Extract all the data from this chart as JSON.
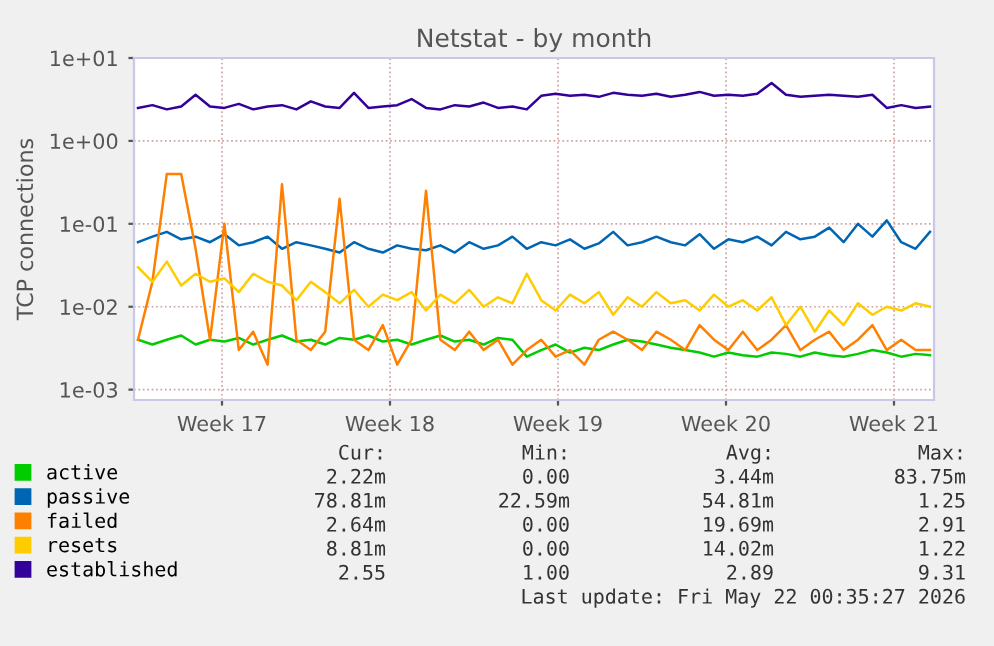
{
  "chart_data": {
    "type": "line",
    "title": "Netstat - by month",
    "ylabel": "TCP connections",
    "log": true,
    "grid": true,
    "legend": "bottom",
    "x": [
      "2026-04-20T00:00",
      "2026-04-20T14:24",
      "2026-04-21T04:48",
      "2026-04-21T19:12",
      "2026-04-22T09:36",
      "2026-04-23T00:00",
      "2026-04-23T14:24",
      "2026-04-24T04:48",
      "2026-04-24T19:12",
      "2026-04-25T09:36",
      "2026-04-26T00:00",
      "2026-04-26T14:24",
      "2026-04-27T04:48",
      "2026-04-27T19:12",
      "2026-04-28T09:36",
      "2026-04-29T00:00",
      "2026-04-29T14:24",
      "2026-04-30T04:48",
      "2026-04-30T19:12",
      "2026-05-01T09:36",
      "2026-05-02T00:00",
      "2026-05-02T14:24",
      "2026-05-03T04:48",
      "2026-05-03T19:12",
      "2026-05-04T09:36",
      "2026-05-05T00:00",
      "2026-05-05T14:24",
      "2026-05-06T04:48",
      "2026-05-06T19:12",
      "2026-05-07T09:36",
      "2026-05-08T00:00",
      "2026-05-08T14:24",
      "2026-05-09T04:48",
      "2026-05-09T19:12",
      "2026-05-10T09:36",
      "2026-05-11T00:00",
      "2026-05-11T14:24",
      "2026-05-12T04:48",
      "2026-05-12T19:12",
      "2026-05-13T09:36",
      "2026-05-14T00:00",
      "2026-05-14T14:24",
      "2026-05-15T04:48",
      "2026-05-15T19:12",
      "2026-05-16T09:36",
      "2026-05-17T00:00",
      "2026-05-17T14:24",
      "2026-05-18T04:48",
      "2026-05-18T19:12",
      "2026-05-19T09:36",
      "2026-05-20T00:00",
      "2026-05-20T14:24",
      "2026-05-21T04:48",
      "2026-05-21T19:12",
      "2026-05-22T09:36",
      "2026-05-23T00:00"
    ],
    "xlim": [
      "2026-04-19T20:00",
      "2026-05-23T04:00"
    ],
    "xticks": [
      {
        "value": "2026-04-23T12:00",
        "label": "Week 17"
      },
      {
        "value": "2026-04-30T12:00",
        "label": "Week 18"
      },
      {
        "value": "2026-05-07T12:00",
        "label": "Week 19"
      },
      {
        "value": "2026-05-14T12:00",
        "label": "Week 20"
      },
      {
        "value": "2026-05-21T12:00",
        "label": "Week 21"
      }
    ],
    "ylim": [
      0.00075,
      10
    ],
    "yticks": [
      {
        "value": 0.001,
        "label": "1e-03"
      },
      {
        "value": 0.01,
        "label": "1e-02"
      },
      {
        "value": 0.1,
        "label": "1e-01"
      },
      {
        "value": 1,
        "label": "1e+00"
      },
      {
        "value": 10,
        "label": "1e+01"
      }
    ],
    "series": [
      {
        "name": "active",
        "color": "#00cc00",
        "values": [
          0.004,
          0.0035,
          0.004,
          0.0045,
          0.0035,
          0.004,
          0.0038,
          0.0042,
          0.0035,
          0.004,
          0.0045,
          0.0038,
          0.004,
          0.0035,
          0.0042,
          0.004,
          0.0045,
          0.0038,
          0.004,
          0.0035,
          0.004,
          0.0045,
          0.0038,
          0.004,
          0.0035,
          0.0042,
          0.004,
          0.0025,
          0.003,
          0.0035,
          0.0028,
          0.0032,
          0.003,
          0.0035,
          0.004,
          0.0038,
          0.0035,
          0.0032,
          0.003,
          0.0028,
          0.0025,
          0.0028,
          0.0026,
          0.0025,
          0.0028,
          0.0027,
          0.0025,
          0.0028,
          0.0026,
          0.0025,
          0.0027,
          0.003,
          0.0028,
          0.0025,
          0.0027,
          0.0026
        ]
      },
      {
        "name": "passive",
        "color": "#0066b3",
        "values": [
          0.06,
          0.07,
          0.08,
          0.065,
          0.07,
          0.06,
          0.075,
          0.055,
          0.06,
          0.07,
          0.05,
          0.06,
          0.055,
          0.05,
          0.045,
          0.06,
          0.05,
          0.045,
          0.055,
          0.05,
          0.048,
          0.055,
          0.045,
          0.06,
          0.05,
          0.055,
          0.07,
          0.05,
          0.06,
          0.055,
          0.065,
          0.05,
          0.058,
          0.08,
          0.055,
          0.06,
          0.07,
          0.06,
          0.055,
          0.075,
          0.05,
          0.065,
          0.06,
          0.07,
          0.055,
          0.08,
          0.065,
          0.07,
          0.09,
          0.06,
          0.1,
          0.07,
          0.11,
          0.06,
          0.05,
          0.08
        ]
      },
      {
        "name": "failed",
        "color": "#ff8000",
        "values": [
          0.004,
          0.02,
          0.4,
          0.4,
          0.05,
          0.004,
          0.1,
          0.003,
          0.005,
          0.002,
          0.3,
          0.004,
          0.003,
          0.005,
          0.2,
          0.004,
          0.003,
          0.006,
          0.002,
          0.004,
          0.25,
          0.004,
          0.003,
          0.005,
          0.003,
          0.004,
          0.002,
          0.003,
          0.004,
          0.0025,
          0.003,
          0.002,
          0.004,
          0.005,
          0.004,
          0.003,
          0.005,
          0.004,
          0.003,
          0.006,
          0.004,
          0.003,
          0.005,
          0.003,
          0.004,
          0.006,
          0.003,
          0.004,
          0.005,
          0.003,
          0.004,
          0.006,
          0.003,
          0.004,
          0.003,
          0.003
        ]
      },
      {
        "name": "resets",
        "color": "#ffcc00",
        "values": [
          0.03,
          0.02,
          0.035,
          0.018,
          0.025,
          0.02,
          0.022,
          0.015,
          0.025,
          0.02,
          0.018,
          0.012,
          0.02,
          0.015,
          0.011,
          0.016,
          0.01,
          0.014,
          0.012,
          0.015,
          0.009,
          0.014,
          0.011,
          0.016,
          0.01,
          0.013,
          0.011,
          0.025,
          0.012,
          0.009,
          0.014,
          0.011,
          0.015,
          0.008,
          0.013,
          0.01,
          0.015,
          0.011,
          0.012,
          0.009,
          0.014,
          0.01,
          0.012,
          0.009,
          0.013,
          0.006,
          0.01,
          0.005,
          0.009,
          0.006,
          0.011,
          0.008,
          0.01,
          0.009,
          0.011,
          0.01
        ]
      },
      {
        "name": "established",
        "color": "#330099",
        "values": [
          2.5,
          2.7,
          2.4,
          2.6,
          3.6,
          2.6,
          2.5,
          2.8,
          2.4,
          2.6,
          2.7,
          2.4,
          3.0,
          2.6,
          2.5,
          3.8,
          2.5,
          2.6,
          2.7,
          3.2,
          2.5,
          2.4,
          2.7,
          2.6,
          2.9,
          2.5,
          2.6,
          2.4,
          3.5,
          3.7,
          3.5,
          3.6,
          3.4,
          3.8,
          3.6,
          3.5,
          3.7,
          3.4,
          3.6,
          3.9,
          3.5,
          3.6,
          3.5,
          3.7,
          5.0,
          3.6,
          3.4,
          3.5,
          3.6,
          3.5,
          3.4,
          3.6,
          2.5,
          2.7,
          2.5,
          2.6
        ]
      }
    ],
    "annotations": [
      "Cur:",
      "Min:",
      "Avg:",
      "Max:",
      "2.22m",
      "0.00",
      "3.44m",
      "83.75m",
      "78.81m",
      "22.59m",
      "54.81m",
      "1.25",
      "2.64m",
      "0.00",
      "19.69m",
      "2.91",
      "8.81m",
      "0.00",
      "14.02m",
      "1.22",
      "2.55",
      "1.00",
      "2.89",
      "9.31",
      "Last update: Fri May 22 00:35:27 2026"
    ]
  }
}
